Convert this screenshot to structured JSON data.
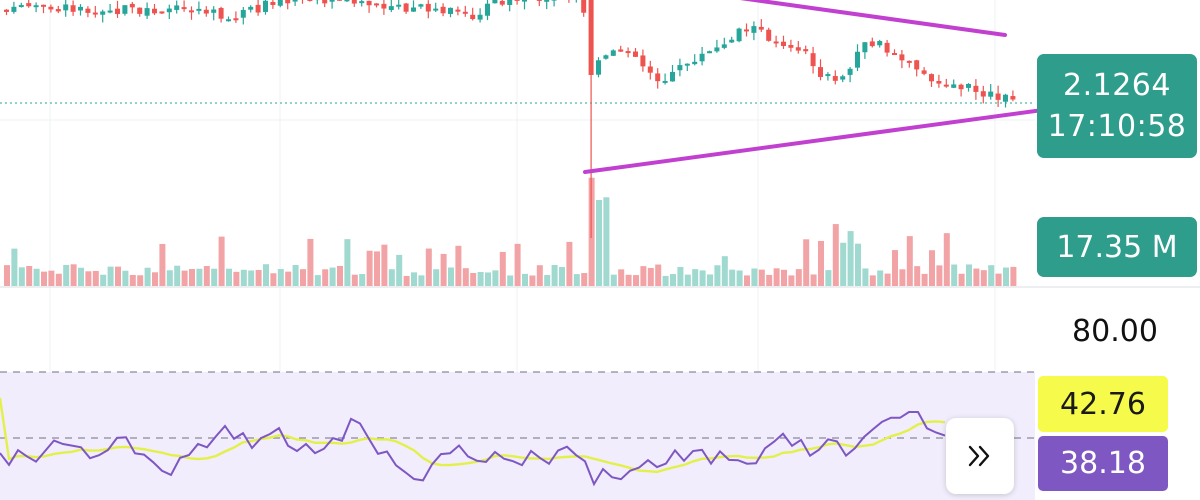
{
  "price_axis": {
    "last_price": "2.1264",
    "countdown": "17:10:58"
  },
  "volume_axis": {
    "last_volume": "17.35 M"
  },
  "rsi_axis": {
    "upper_level": "80.00",
    "rsi_ma_value": "42.76",
    "rsi_value": "38.18"
  },
  "controls": {
    "expand_icon": "double-chevron-right-icon"
  },
  "colors": {
    "up": "#26a69a",
    "down": "#ef5350",
    "volume_up": "#9fd9d0",
    "volume_down": "#f2a3a5",
    "price_label_bg": "#2e9d8c",
    "trendline": "#c140d0",
    "rsi_line": "#7e57c2",
    "rsi_ma_line": "#e3f04a",
    "rsi_band": "#f1edfc",
    "rsi_ma_label_bg": "#f5fa4b",
    "rsi_label_bg": "#7e57c2"
  },
  "chart_data": {
    "type": "candlestick",
    "panes": [
      "price",
      "volume",
      "rsi"
    ],
    "last_price": 2.1264,
    "last_volume_millions": 17.35,
    "rsi": {
      "current_rsi": 38.18,
      "current_rsi_ma": 42.76,
      "upper_band": 80.0
    },
    "trendlines": [
      {
        "role": "upper",
        "direction": "descending"
      },
      {
        "role": "lower",
        "direction": "ascending"
      }
    ]
  }
}
